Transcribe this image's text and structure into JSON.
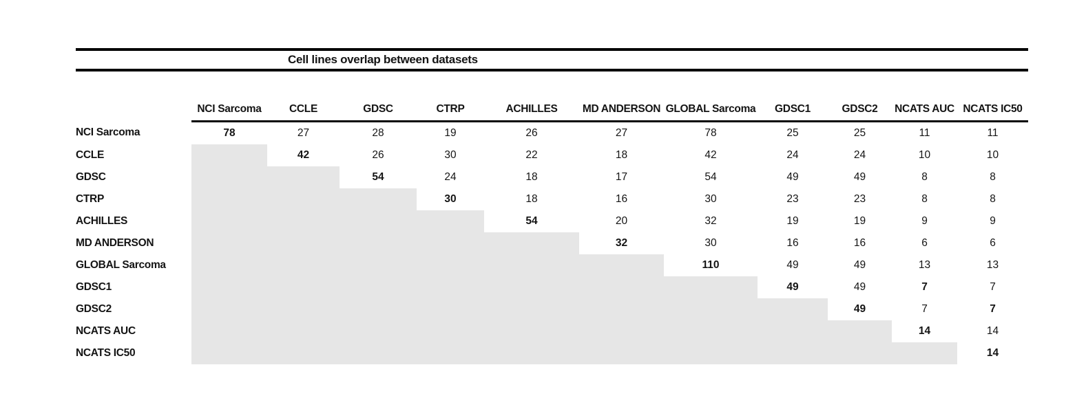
{
  "table": {
    "title": "Cell lines overlap between datasets",
    "columns": [
      "NCI Sarcoma",
      "CCLE",
      "GDSC",
      "CTRP",
      "ACHILLES",
      "MD ANDERSON",
      "GLOBAL Sarcoma",
      "GDSC1",
      "GDSC2",
      "NCATS AUC",
      "NCATS IC50"
    ],
    "rows": [
      {
        "label": "NCI Sarcoma",
        "cells": [
          "78",
          "27",
          "28",
          "19",
          "26",
          "27",
          "78",
          "25",
          "25",
          "11",
          "11"
        ],
        "bold_cols": [
          0
        ]
      },
      {
        "label": "CCLE",
        "cells": [
          null,
          "42",
          "26",
          "30",
          "22",
          "18",
          "42",
          "24",
          "24",
          "10",
          "10"
        ],
        "bold_cols": [
          1
        ]
      },
      {
        "label": "GDSC",
        "cells": [
          null,
          null,
          "54",
          "24",
          "18",
          "17",
          "54",
          "49",
          "49",
          "8",
          "8"
        ],
        "bold_cols": [
          2
        ]
      },
      {
        "label": "CTRP",
        "cells": [
          null,
          null,
          null,
          "30",
          "18",
          "16",
          "30",
          "23",
          "23",
          "8",
          "8"
        ],
        "bold_cols": [
          3
        ]
      },
      {
        "label": "ACHILLES",
        "cells": [
          null,
          null,
          null,
          null,
          "54",
          "20",
          "32",
          "19",
          "19",
          "9",
          "9"
        ],
        "bold_cols": [
          4
        ]
      },
      {
        "label": "MD ANDERSON",
        "cells": [
          null,
          null,
          null,
          null,
          null,
          "32",
          "30",
          "16",
          "16",
          "6",
          "6"
        ],
        "bold_cols": [
          5
        ]
      },
      {
        "label": "GLOBAL Sarcoma",
        "cells": [
          null,
          null,
          null,
          null,
          null,
          null,
          "110",
          "49",
          "49",
          "13",
          "13"
        ],
        "bold_cols": [
          6
        ]
      },
      {
        "label": "GDSC1",
        "cells": [
          null,
          null,
          null,
          null,
          null,
          null,
          null,
          "49",
          "49",
          "7",
          "7"
        ],
        "bold_cols": [
          7,
          9
        ]
      },
      {
        "label": "GDSC2",
        "cells": [
          null,
          null,
          null,
          null,
          null,
          null,
          null,
          null,
          "49",
          "7",
          "7"
        ],
        "bold_cols": [
          8,
          10
        ]
      },
      {
        "label": "NCATS AUC",
        "cells": [
          null,
          null,
          null,
          null,
          null,
          null,
          null,
          null,
          null,
          "14",
          "14"
        ],
        "bold_cols": [
          9
        ]
      },
      {
        "label": "NCATS IC50",
        "cells": [
          null,
          null,
          null,
          null,
          null,
          null,
          null,
          null,
          null,
          null,
          "14"
        ],
        "bold_cols": [
          10
        ]
      }
    ],
    "shaded_color": "#e6e6e6",
    "rule_color": "#000000"
  },
  "chart_data": {
    "type": "table",
    "title": "Cell lines overlap between datasets",
    "columns": [
      "NCI Sarcoma",
      "CCLE",
      "GDSC",
      "CTRP",
      "ACHILLES",
      "MD ANDERSON",
      "GLOBAL Sarcoma",
      "GDSC1",
      "GDSC2",
      "NCATS AUC",
      "NCATS IC50"
    ],
    "row_labels": [
      "NCI Sarcoma",
      "CCLE",
      "GDSC",
      "CTRP",
      "ACHILLES",
      "MD ANDERSON",
      "GLOBAL Sarcoma",
      "GDSC1",
      "GDSC2",
      "NCATS AUC",
      "NCATS IC50"
    ],
    "matrix": [
      [
        78,
        27,
        28,
        19,
        26,
        27,
        78,
        25,
        25,
        11,
        11
      ],
      [
        null,
        42,
        26,
        30,
        22,
        18,
        42,
        24,
        24,
        10,
        10
      ],
      [
        null,
        null,
        54,
        24,
        18,
        17,
        54,
        49,
        49,
        8,
        8
      ],
      [
        null,
        null,
        null,
        30,
        18,
        16,
        30,
        23,
        23,
        8,
        8
      ],
      [
        null,
        null,
        null,
        null,
        54,
        20,
        32,
        19,
        19,
        9,
        9
      ],
      [
        null,
        null,
        null,
        null,
        null,
        32,
        30,
        16,
        16,
        6,
        6
      ],
      [
        null,
        null,
        null,
        null,
        null,
        null,
        110,
        49,
        49,
        13,
        13
      ],
      [
        null,
        null,
        null,
        null,
        null,
        null,
        null,
        49,
        49,
        7,
        7
      ],
      [
        null,
        null,
        null,
        null,
        null,
        null,
        null,
        null,
        49,
        7,
        7
      ],
      [
        null,
        null,
        null,
        null,
        null,
        null,
        null,
        null,
        null,
        14,
        14
      ],
      [
        null,
        null,
        null,
        null,
        null,
        null,
        null,
        null,
        null,
        null,
        14
      ]
    ],
    "layout": "upper-triangular matrix; lower triangle shaded gray; diagonal values bold; extra bold cells at GDSC1×NCATS AUC and GDSC2×NCATS IC50"
  }
}
